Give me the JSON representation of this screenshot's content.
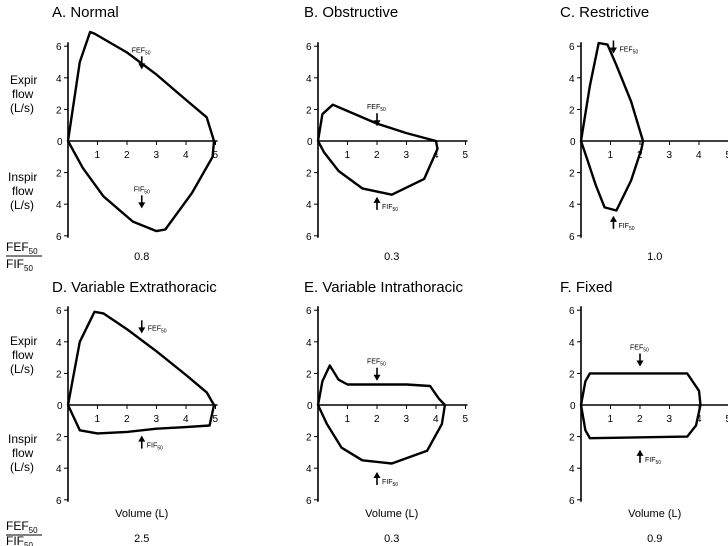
{
  "figure": {
    "left_labels": {
      "expir": [
        "Expir",
        "flow",
        "(L/s)"
      ],
      "inspir": [
        "Inspir",
        "flow",
        "(L/s)"
      ]
    },
    "ratio_label": {
      "top": "FEF",
      "top_sub": "50",
      "bottom": "FIF",
      "bottom_sub": "50"
    },
    "xlabel": "Volume (L)"
  },
  "chart_data": [
    {
      "type": "line",
      "title": "A.  Normal",
      "ratio_value": "0.8",
      "xlim": [
        0,
        5
      ],
      "ylim": [
        -6,
        6
      ],
      "x_ticks": [
        "1",
        "2",
        "3",
        "4",
        "5"
      ],
      "y_ticks_expir": [
        "2",
        "4",
        "6"
      ],
      "y_ticks_inspir": [
        "2",
        "4",
        "6"
      ],
      "series": [
        {
          "x": [
            0,
            0.4,
            0.75,
            0.9,
            2,
            3,
            4,
            4.7,
            4.95,
            4.9,
            4.2,
            3.3,
            3.0,
            2.2,
            1.2,
            0.5,
            0
          ],
          "y": [
            0,
            5,
            6.9,
            6.8,
            5.6,
            4.2,
            2.6,
            1.5,
            0,
            -1,
            -3.3,
            -5.6,
            -5.7,
            -5.1,
            -3.5,
            -1.7,
            0
          ]
        }
      ],
      "annotations": [
        {
          "text": "FEF",
          "sub": "50",
          "x": 2.5,
          "y": 4.6,
          "arrow": "down"
        },
        {
          "text": "FIF",
          "sub": "50",
          "x": 2.5,
          "y": -4.2,
          "arrow": "down"
        }
      ]
    },
    {
      "type": "line",
      "title": "B.  Obstructive",
      "ratio_value": "0.3",
      "xlim": [
        0,
        5
      ],
      "ylim": [
        -6,
        6
      ],
      "x_ticks": [
        "1",
        "2",
        "3",
        "4",
        "5"
      ],
      "y_ticks_expir": [
        "2",
        "4",
        "6"
      ],
      "y_ticks_inspir": [
        "2",
        "4",
        "6"
      ],
      "series": [
        {
          "x": [
            0,
            0.15,
            0.5,
            1,
            2,
            3,
            4,
            4.05,
            3.6,
            2.5,
            1.5,
            0.7,
            0.2,
            0
          ],
          "y": [
            0,
            1.7,
            2.3,
            1.9,
            1.1,
            0.5,
            0,
            -0.5,
            -2.4,
            -3.4,
            -3.0,
            -1.9,
            -0.7,
            0
          ]
        }
      ],
      "annotations": [
        {
          "text": "FEF",
          "sub": "50",
          "x": 2.0,
          "y": 1.0,
          "arrow": "down"
        },
        {
          "text": "FIF",
          "sub": "50",
          "x": 2.0,
          "y": -3.6,
          "arrow": "up"
        }
      ]
    },
    {
      "type": "line",
      "title": "C.  Restrictive",
      "ratio_value": "1.0",
      "xlim": [
        0,
        5
      ],
      "ylim": [
        -6,
        6
      ],
      "x_ticks": [
        "1",
        "2",
        "3",
        "4",
        "5"
      ],
      "y_ticks_expir": [
        "2",
        "4",
        "6"
      ],
      "y_ticks_inspir": [
        "2",
        "4",
        "6"
      ],
      "series": [
        {
          "x": [
            0,
            0.3,
            0.6,
            0.9,
            1.2,
            1.7,
            2.1,
            2.05,
            1.7,
            1.2,
            0.8,
            0.5,
            0.2,
            0
          ],
          "y": [
            0,
            3.5,
            6.2,
            6.1,
            4.8,
            2.5,
            0,
            -0.5,
            -2.5,
            -4.4,
            -4.2,
            -2.8,
            -1.1,
            0
          ]
        }
      ],
      "annotations": [
        {
          "text": "FEF",
          "sub": "50",
          "x": 1.1,
          "y": 5.6,
          "arrow": "down"
        },
        {
          "text": "FIF",
          "sub": "50",
          "x": 1.1,
          "y": -4.8,
          "arrow": "up"
        }
      ]
    },
    {
      "type": "line",
      "title": "D.  Variable Extrathoracic",
      "ratio_value": "2.5",
      "xlim": [
        0,
        5
      ],
      "ylim": [
        -6,
        6
      ],
      "x_ticks": [
        "1",
        "2",
        "3",
        "4",
        "5"
      ],
      "y_ticks_expir": [
        "2",
        "4",
        "6"
      ],
      "y_ticks_inspir": [
        "2",
        "4",
        "6"
      ],
      "series": [
        {
          "x": [
            0,
            0.4,
            0.9,
            1.2,
            2,
            3,
            4,
            4.7,
            4.95,
            4.8,
            4,
            3,
            2,
            1,
            0.4,
            0
          ],
          "y": [
            0,
            4,
            5.9,
            5.8,
            4.8,
            3.4,
            1.9,
            0.8,
            0,
            -1.3,
            -1.4,
            -1.5,
            -1.7,
            -1.8,
            -1.6,
            0
          ]
        }
      ],
      "annotations": [
        {
          "text": "FEF",
          "sub": "50",
          "x": 2.5,
          "y": 4.6,
          "arrow": "down"
        },
        {
          "text": "FIF",
          "sub": "50",
          "x": 2.5,
          "y": -2.0,
          "arrow": "up"
        }
      ]
    },
    {
      "type": "line",
      "title": "E.  Variable Intrathoracic",
      "ratio_value": "0.3",
      "xlim": [
        0,
        5
      ],
      "ylim": [
        -6,
        6
      ],
      "x_ticks": [
        "1",
        "2",
        "3",
        "4",
        "5"
      ],
      "y_ticks_expir": [
        "2",
        "4",
        "6"
      ],
      "y_ticks_inspir": [
        "2",
        "4",
        "6"
      ],
      "series": [
        {
          "x": [
            0,
            0.15,
            0.4,
            0.7,
            1,
            2,
            3,
            3.8,
            4.1,
            4.3,
            4.2,
            3.7,
            2.5,
            1.5,
            0.8,
            0.3,
            0
          ],
          "y": [
            0,
            1.5,
            2.5,
            1.6,
            1.3,
            1.3,
            1.3,
            1.2,
            0.4,
            0,
            -1.2,
            -2.9,
            -3.7,
            -3.5,
            -2.7,
            -1.2,
            0
          ]
        }
      ],
      "annotations": [
        {
          "text": "FEF",
          "sub": "50",
          "x": 2.0,
          "y": 1.6,
          "arrow": "down"
        },
        {
          "text": "FIF",
          "sub": "50",
          "x": 2.0,
          "y": -4.3,
          "arrow": "up"
        }
      ]
    },
    {
      "type": "line",
      "title": "F.  Fixed",
      "ratio_value": "0.9",
      "xlim": [
        0,
        5
      ],
      "ylim": [
        -6,
        6
      ],
      "x_ticks": [
        "1",
        "2",
        "3",
        "4",
        "5"
      ],
      "y_ticks_expir": [
        "2",
        "4",
        "6"
      ],
      "y_ticks_inspir": [
        "2",
        "4",
        "6"
      ],
      "series": [
        {
          "x": [
            0,
            0.15,
            0.3,
            3.6,
            4.0,
            4.05,
            3.9,
            3.6,
            0.3,
            0.15,
            0
          ],
          "y": [
            0,
            1.5,
            2.0,
            2.0,
            0.9,
            0,
            -1.3,
            -2.0,
            -2.1,
            -1.6,
            0
          ]
        }
      ],
      "annotations": [
        {
          "text": "FEF",
          "sub": "50",
          "x": 2.0,
          "y": 2.5,
          "arrow": "down"
        },
        {
          "text": "FIF",
          "sub": "50",
          "x": 2.0,
          "y": -2.9,
          "arrow": "up"
        }
      ]
    }
  ]
}
